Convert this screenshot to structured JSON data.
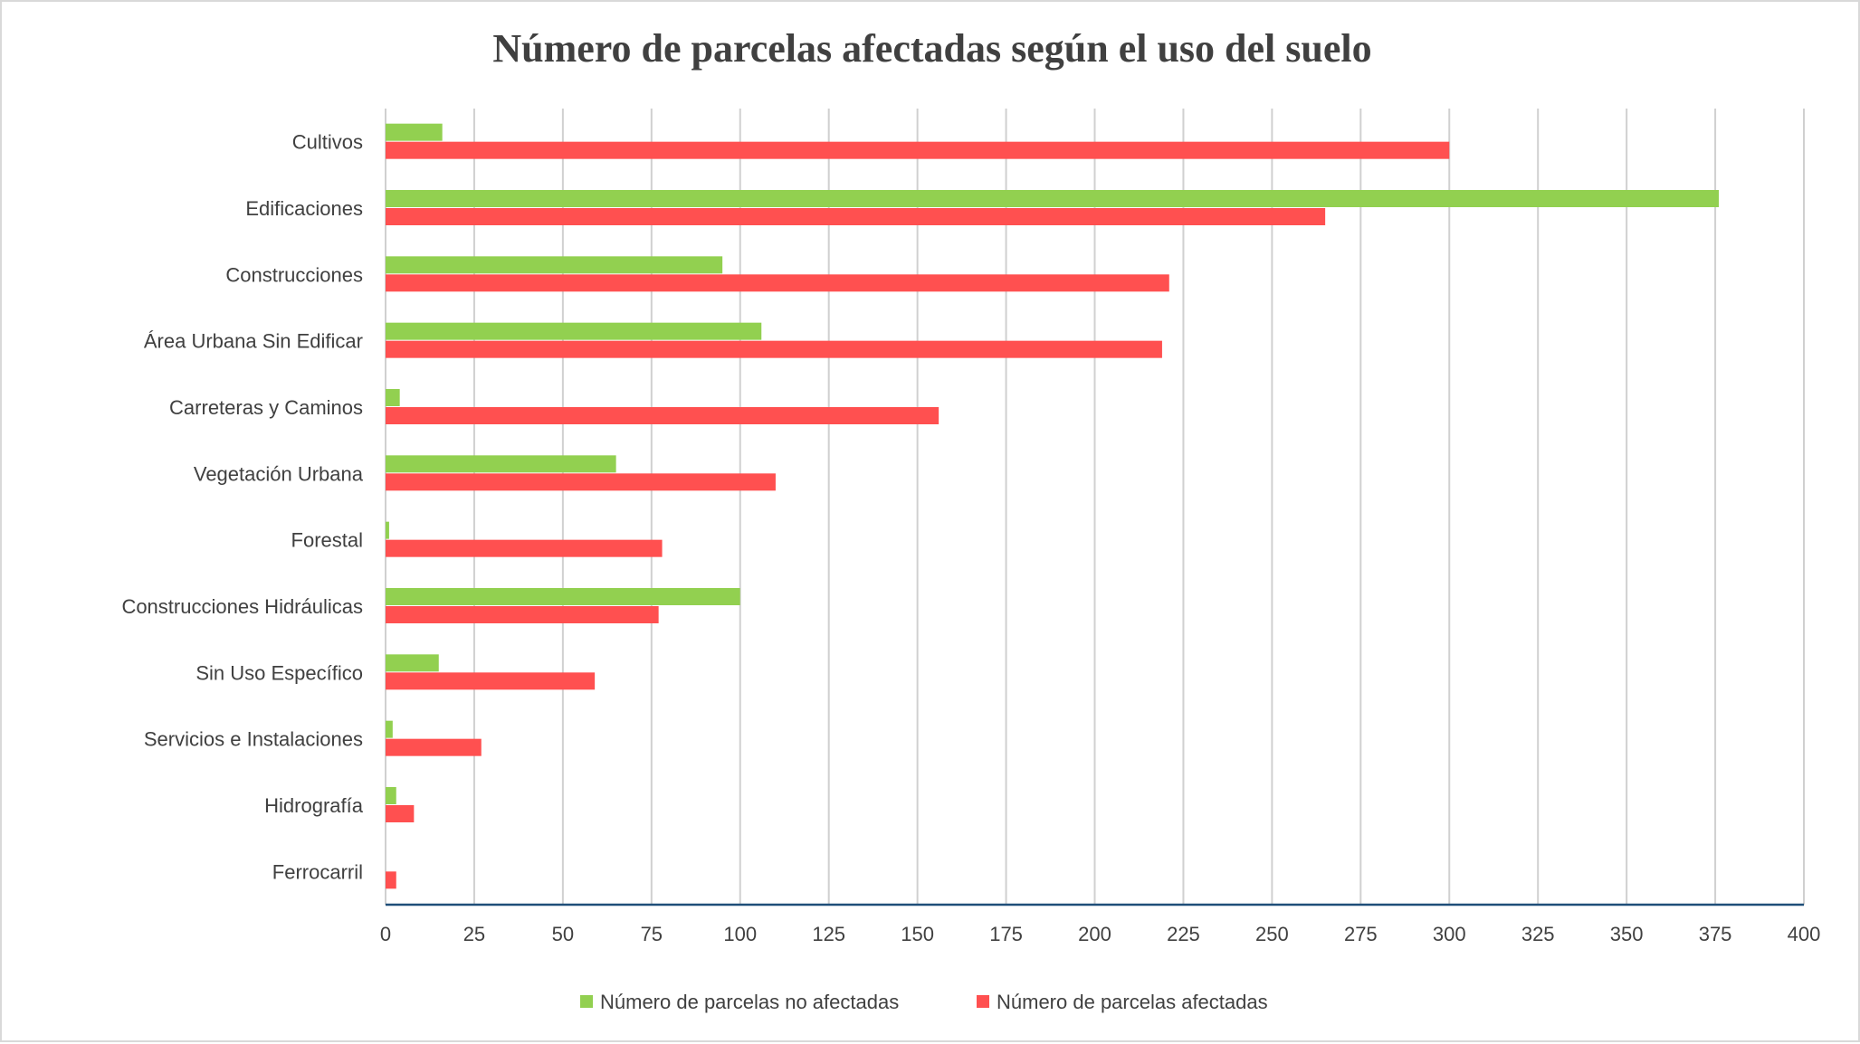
{
  "chart_data": {
    "type": "bar",
    "orientation": "horizontal",
    "title": "Número de parcelas afectadas según el uso del suelo",
    "categories": [
      "Cultivos",
      "Edificaciones",
      "Construcciones",
      "Área Urbana Sin Edificar",
      "Carreteras y Caminos",
      "Vegetación Urbana",
      "Forestal",
      "Construcciones Hidráulicas",
      "Sin Uso Específico",
      "Servicios e Instalaciones",
      "Hidrografía",
      "Ferrocarril"
    ],
    "series": [
      {
        "name": "Número de parcelas no afectadas",
        "color": "#92d050",
        "values": [
          16,
          376,
          95,
          106,
          4,
          65,
          1,
          100,
          15,
          2,
          3,
          0
        ]
      },
      {
        "name": "Número de parcelas afectadas",
        "color": "#ff5050",
        "values": [
          300,
          265,
          221,
          219,
          156,
          110,
          78,
          77,
          59,
          27,
          8,
          3
        ]
      }
    ],
    "xlim": [
      0,
      400
    ],
    "xticks": [
      0,
      25,
      50,
      75,
      100,
      125,
      150,
      175,
      200,
      225,
      250,
      275,
      300,
      325,
      350,
      375,
      400
    ],
    "xlabel": "",
    "ylabel": "",
    "grid": "vertical",
    "legend_position": "bottom",
    "axis_color": "#1f4e79",
    "grid_color": "#d0d0d0"
  }
}
